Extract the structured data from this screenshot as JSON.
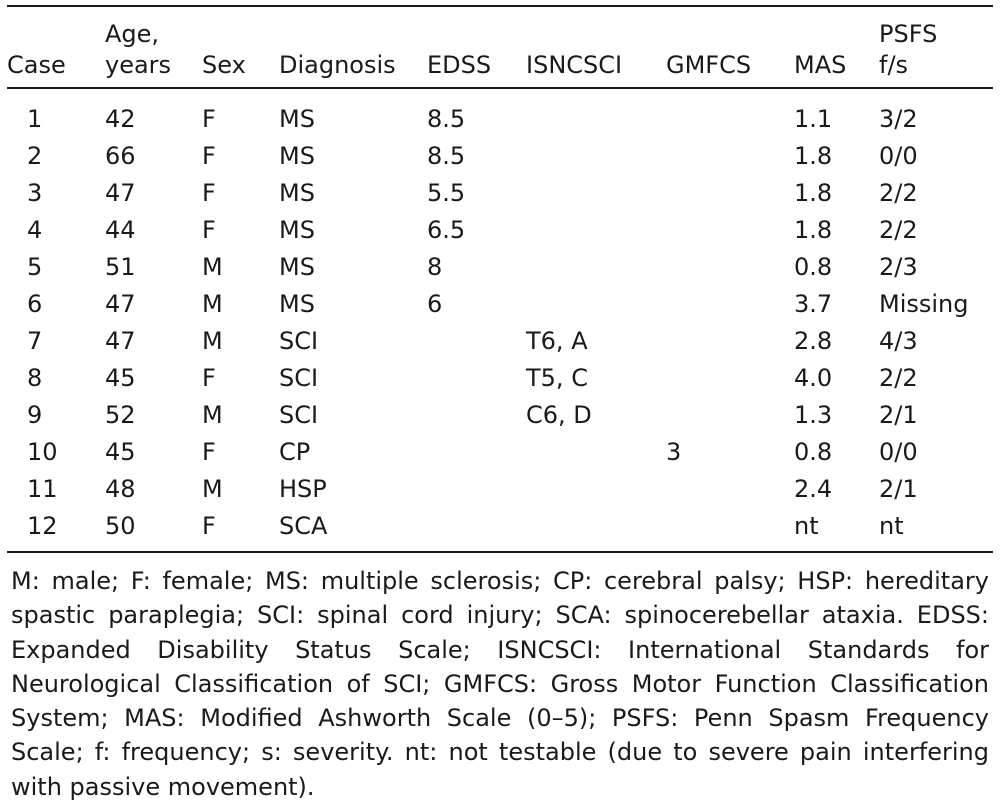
{
  "columns": [
    {
      "key": "case",
      "line1": "",
      "line2": "Case"
    },
    {
      "key": "age",
      "line1": "Age,",
      "line2": "years"
    },
    {
      "key": "sex",
      "line1": "",
      "line2": "Sex"
    },
    {
      "key": "diagnosis",
      "line1": "",
      "line2": "Diagnosis"
    },
    {
      "key": "edss",
      "line1": "",
      "line2": "EDSS"
    },
    {
      "key": "isncsci",
      "line1": "",
      "line2": "ISNCSCI"
    },
    {
      "key": "gmfcs",
      "line1": "",
      "line2": "GMFCS"
    },
    {
      "key": "mas",
      "line1": "",
      "line2": "MAS"
    },
    {
      "key": "psfs",
      "line1": "PSFS",
      "line2": "f/s"
    }
  ],
  "rows": [
    [
      "1",
      "42",
      "F",
      "MS",
      "8.5",
      "",
      "",
      "1.1",
      "3/2"
    ],
    [
      "2",
      "66",
      "F",
      "MS",
      "8.5",
      "",
      "",
      "1.8",
      "0/0"
    ],
    [
      "3",
      "47",
      "F",
      "MS",
      "5.5",
      "",
      "",
      "1.8",
      "2/2"
    ],
    [
      "4",
      "44",
      "F",
      "MS",
      "6.5",
      "",
      "",
      "1.8",
      "2/2"
    ],
    [
      "5",
      "51",
      "M",
      "MS",
      "8",
      "",
      "",
      "0.8",
      "2/3"
    ],
    [
      "6",
      "47",
      "M",
      "MS",
      "6",
      "",
      "",
      "3.7",
      "Missing"
    ],
    [
      "7",
      "47",
      "M",
      "SCI",
      "",
      "T6, A",
      "",
      "2.8",
      "4/3"
    ],
    [
      "8",
      "45",
      "F",
      "SCI",
      "",
      "T5, C",
      "",
      "4.0",
      "2/2"
    ],
    [
      "9",
      "52",
      "M",
      "SCI",
      "",
      "C6, D",
      "",
      "1.3",
      "2/1"
    ],
    [
      "10",
      "45",
      "F",
      "CP",
      "",
      "",
      "3",
      "0.8",
      "0/0"
    ],
    [
      "11",
      "48",
      "M",
      "HSP",
      "",
      "",
      "",
      "2.4",
      "2/1"
    ],
    [
      "12",
      "50",
      "F",
      "SCA",
      "",
      "",
      "",
      "nt",
      "nt"
    ]
  ],
  "footnote": "M: male; F: female; MS: multiple sclerosis; CP: cerebral palsy; HSP: hereditary spastic paraplegia; SCI: spinal cord injury; SCA: spinocerebellar ataxia. EDSS: Expanded Disability Status Scale; ISNCSCI: International Standards for Neurological Classification of SCI; GMFCS: Gross Motor Function Classification System; MAS: Modified Ashworth Scale (0–5); PSFS: Penn Spasm Frequency Scale; f: frequency; s: severity. nt: not testable (due to severe pain interfering with passive movement)."
}
